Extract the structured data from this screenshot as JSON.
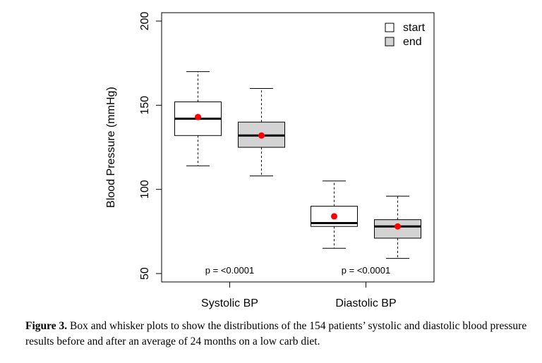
{
  "chart_data": {
    "type": "box",
    "ylabel": "Blood Pressure (mmHg)",
    "ylim": [
      45,
      205
    ],
    "yticks": [
      50,
      100,
      150,
      200
    ],
    "categories": [
      "Systolic BP",
      "Diastolic BP"
    ],
    "legend": {
      "position": "top-right",
      "entries": [
        {
          "label": "start",
          "fill": "#ffffff"
        },
        {
          "label": "end",
          "fill": "#d3d3d3"
        }
      ]
    },
    "series": [
      {
        "name": "start",
        "fill": "#ffffff",
        "boxes": [
          {
            "category": "Systolic BP",
            "whisker_low": 114,
            "q1": 132,
            "median": 142,
            "q3": 152,
            "whisker_high": 170,
            "mean": 143
          },
          {
            "category": "Diastolic BP",
            "whisker_low": 65,
            "q1": 78,
            "median": 80,
            "q3": 90,
            "whisker_high": 105,
            "mean": 84
          }
        ]
      },
      {
        "name": "end",
        "fill": "#d3d3d3",
        "boxes": [
          {
            "category": "Systolic BP",
            "whisker_low": 108,
            "q1": 125,
            "median": 132,
            "q3": 140,
            "whisker_high": 160,
            "mean": 132
          },
          {
            "category": "Diastolic BP",
            "whisker_low": 59,
            "q1": 71,
            "median": 78,
            "q3": 82,
            "whisker_high": 96,
            "mean": 78
          }
        ]
      }
    ],
    "annotations": [
      {
        "category": "Systolic BP",
        "text": "p = <0.0001"
      },
      {
        "category": "Diastolic BP",
        "text": "p = <0.0001"
      }
    ],
    "mean_color": "#ff0000",
    "grid": false
  },
  "caption": {
    "label": "Figure 3.",
    "text": "Box and whisker plots to show the distributions of the 154 patients’ systolic and diastolic blood pressure results before and after an average of 24 months on a low carb diet."
  }
}
